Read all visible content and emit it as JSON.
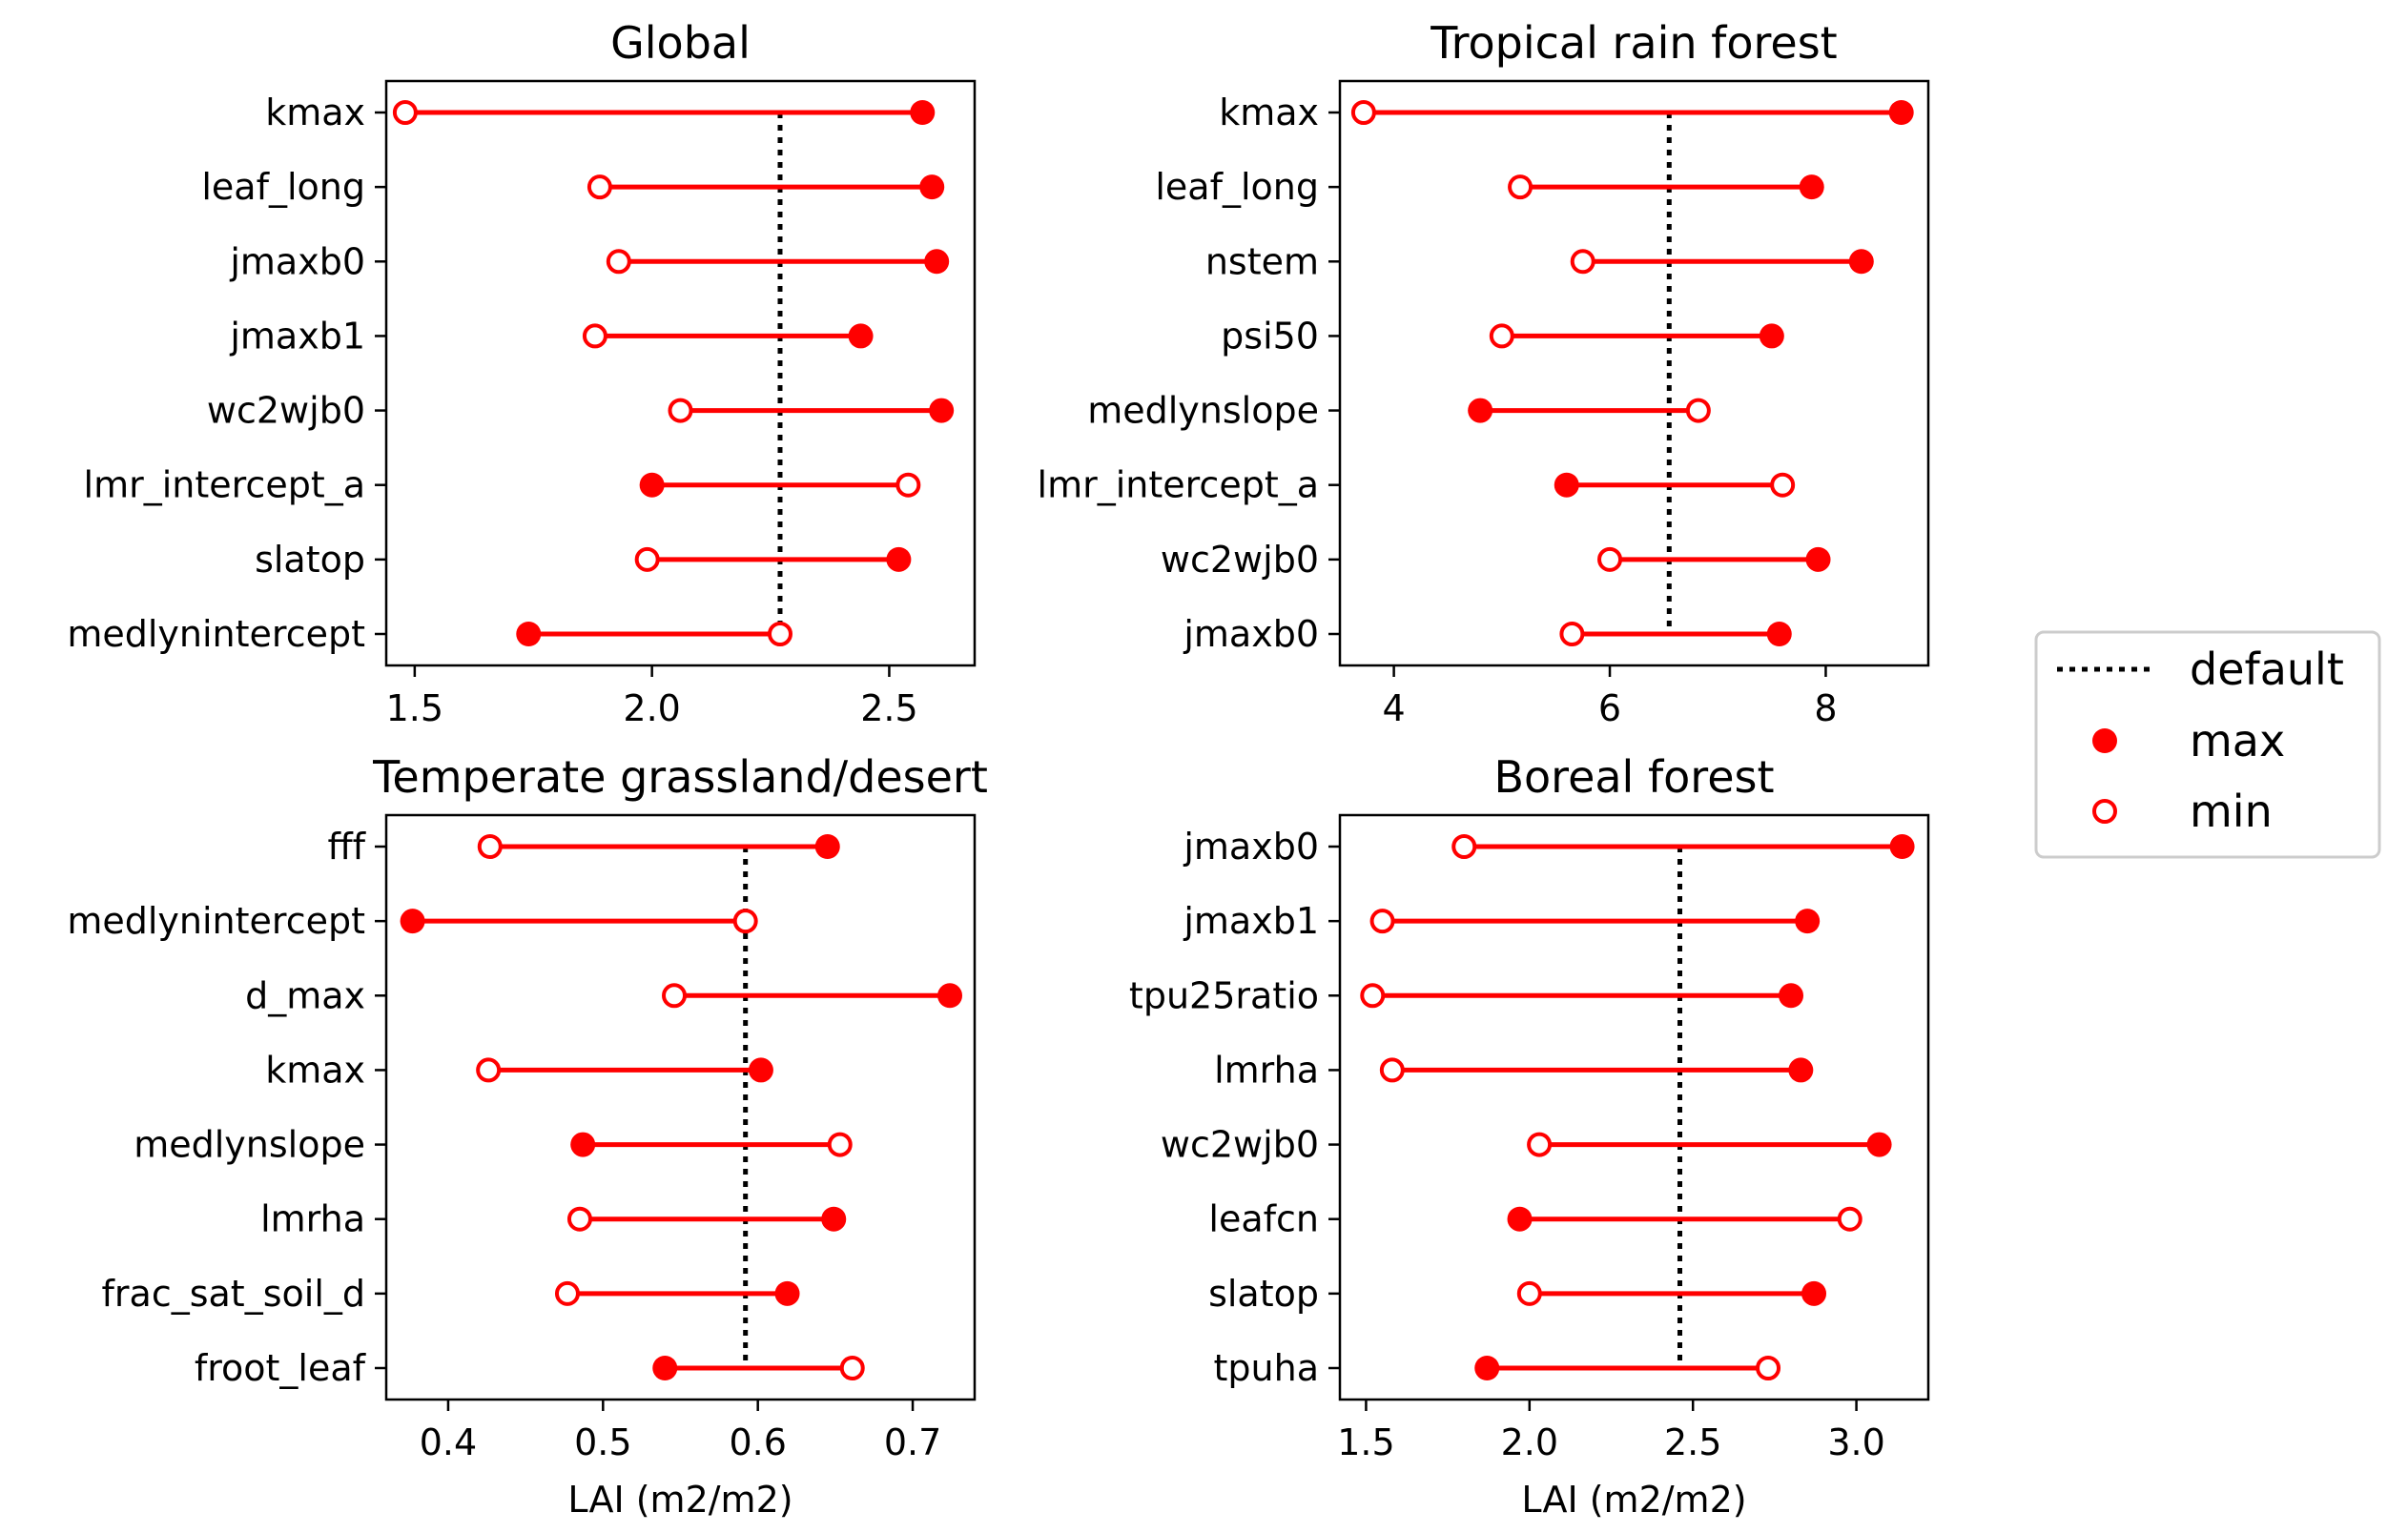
{
  "colors": {
    "series": "#ff0000",
    "default_line": "#000000"
  },
  "legend": {
    "placement": "right-center",
    "entries": [
      "default",
      "max",
      "min"
    ]
  },
  "chart_data": [
    {
      "type": "dumbbell",
      "title": "Global",
      "xlabel": "",
      "xlim": [
        1.44,
        2.68
      ],
      "xticks": [
        1.5,
        2.0,
        2.5
      ],
      "xticklabels": [
        "1.5",
        "2.0",
        "2.5"
      ],
      "default": 2.27,
      "categories": [
        "kmax",
        "leaf_long",
        "jmaxb0",
        "jmaxb1",
        "wc2wjb0",
        "lmr_intercept_a",
        "slatop",
        "medlynintercept"
      ],
      "series": [
        {
          "name": "max",
          "values": [
            2.57,
            2.59,
            2.6,
            2.44,
            2.61,
            2.0,
            2.52,
            1.74
          ]
        },
        {
          "name": "min",
          "values": [
            1.48,
            1.89,
            1.93,
            1.88,
            2.06,
            2.54,
            1.99,
            2.27
          ]
        }
      ]
    },
    {
      "type": "dumbbell",
      "title": "Tropical rain forest",
      "xlabel": "",
      "xlim": [
        3.5,
        8.95
      ],
      "xticks": [
        4,
        6,
        8
      ],
      "xticklabels": [
        "4",
        "6",
        "8"
      ],
      "default": 6.55,
      "categories": [
        "kmax",
        "leaf_long",
        "nstem",
        "psi50",
        "medlynslope",
        "lmr_intercept_a",
        "wc2wjb0",
        "jmaxb0"
      ],
      "series": [
        {
          "name": "max",
          "values": [
            8.7,
            7.87,
            8.33,
            7.5,
            4.8,
            5.6,
            7.93,
            7.57
          ]
        },
        {
          "name": "min",
          "values": [
            3.72,
            5.17,
            5.75,
            5.0,
            6.82,
            7.6,
            6.0,
            5.65
          ]
        }
      ]
    },
    {
      "type": "dumbbell",
      "title": "Temperate grassland/desert",
      "xlabel": "LAI (m2/m2)",
      "xlim": [
        0.36,
        0.74
      ],
      "xticks": [
        0.4,
        0.5,
        0.6,
        0.7
      ],
      "xticklabels": [
        "0.4",
        "0.5",
        "0.6",
        "0.7"
      ],
      "default": 0.592,
      "categories": [
        "fff",
        "medlynintercept",
        "d_max",
        "kmax",
        "medlynslope",
        "lmrha",
        "frac_sat_soil_d",
        "froot_leaf"
      ],
      "series": [
        {
          "name": "max",
          "values": [
            0.645,
            0.377,
            0.724,
            0.602,
            0.487,
            0.649,
            0.619,
            0.54
          ]
        },
        {
          "name": "min",
          "values": [
            0.427,
            0.592,
            0.546,
            0.426,
            0.653,
            0.485,
            0.477,
            0.661
          ]
        }
      ]
    },
    {
      "type": "dumbbell",
      "title": "Boreal forest",
      "xlabel": "LAI (m2/m2)",
      "xlim": [
        1.42,
        3.22
      ],
      "xticks": [
        1.5,
        2.0,
        2.5,
        3.0
      ],
      "xticklabels": [
        "1.5",
        "2.0",
        "2.5",
        "3.0"
      ],
      "default": 2.46,
      "categories": [
        "jmaxb0",
        "jmaxb1",
        "tpu25ratio",
        "lmrha",
        "wc2wjb0",
        "leafcn",
        "slatop",
        "tpuha"
      ],
      "series": [
        {
          "name": "max",
          "values": [
            3.14,
            2.85,
            2.8,
            2.83,
            3.07,
            1.97,
            2.87,
            1.87
          ]
        },
        {
          "name": "min",
          "values": [
            1.8,
            1.55,
            1.52,
            1.58,
            2.03,
            2.98,
            2.0,
            2.73
          ]
        }
      ]
    }
  ]
}
